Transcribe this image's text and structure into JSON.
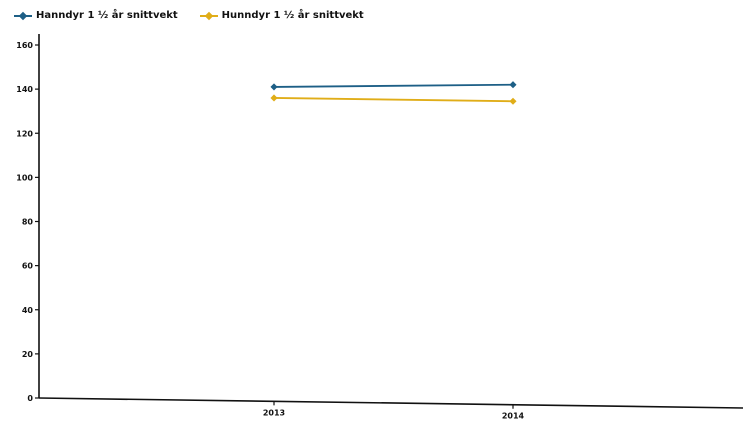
{
  "colors": {
    "axis": "#111111",
    "series_0": "#1d5f86",
    "series_1": "#e0ad18"
  },
  "chart_data": {
    "type": "line",
    "x": [
      "2013",
      "2014"
    ],
    "series": [
      {
        "name": "Hanndyr 1 ½ år snittvekt",
        "values": [
          141,
          142
        ]
      },
      {
        "name": "Hunndyr 1 ½ år snittvekt",
        "values": [
          136,
          134.5
        ]
      }
    ],
    "ylim": [
      0,
      160
    ],
    "yticks": [
      "0",
      "20",
      "40",
      "60",
      "80",
      "100",
      "120",
      "140",
      "160"
    ],
    "title": "",
    "xlabel": "",
    "ylabel": "",
    "grid": false,
    "legend_position": "top-left"
  }
}
